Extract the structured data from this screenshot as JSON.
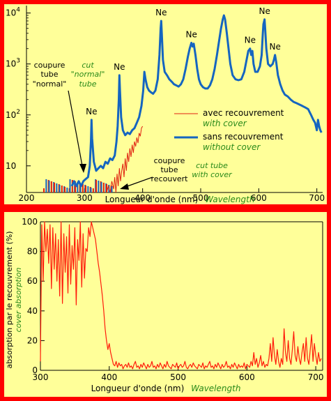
{
  "colors": {
    "frame": "#ff0000",
    "background": "#ffff99",
    "series_without_cover": "#1565c0",
    "series_with_cover": "#e02010",
    "absorption": "#ff1a0a",
    "english_text": "#2a8a1a",
    "text": "#000000"
  },
  "chart_data": [
    {
      "type": "line",
      "ylog": true,
      "xlim": [
        200,
        710
      ],
      "ylim": [
        3,
        14000
      ],
      "xticks": [
        "200",
        "300",
        "400",
        "500",
        "600",
        "700"
      ],
      "yticks": [
        {
          "base": "10",
          "exp": ""
        },
        {
          "base": "10",
          "exp": "2"
        },
        {
          "base": "10",
          "exp": "3"
        },
        {
          "base": "10",
          "exp": "4"
        }
      ],
      "xlabel": "Longueur d'onde (nm)",
      "xlabel_en": "Wavelength",
      "legend": [
        {
          "label": "avec recouvrement",
          "label_en": "with cover"
        },
        {
          "label": "sans recouvrement",
          "label_en": "without cover"
        }
      ],
      "annotations": {
        "ne": "Ne",
        "cut_normal_fr": [
          "coupure",
          "tube",
          "\"normal\""
        ],
        "cut_normal_en": [
          "cut",
          "\"normal\"",
          "tube"
        ],
        "cut_covered_fr": [
          "coupure",
          "tube",
          "recouvert"
        ],
        "cut_covered_en": [
          "cut tube",
          "with cover"
        ]
      },
      "ne_peaks": [
        {
          "x": 312,
          "y": 80
        },
        {
          "x": 360,
          "y": 600
        },
        {
          "x": 432,
          "y": 7000
        },
        {
          "x": 484,
          "y": 2600
        },
        {
          "x": 585,
          "y": 2000
        },
        {
          "x": 610,
          "y": 7500
        },
        {
          "x": 628,
          "y": 1500
        }
      ],
      "series": [
        {
          "name": "sans recouvrement",
          "points": [
            [
              278,
              4
            ],
            [
              282,
              5
            ],
            [
              286,
              4
            ],
            [
              290,
              5
            ],
            [
              294,
              4
            ],
            [
              298,
              5
            ],
            [
              302,
              5.5
            ],
            [
              306,
              6
            ],
            [
              309,
              10
            ],
            [
              311,
              30
            ],
            [
              312,
              80
            ],
            [
              313,
              35
            ],
            [
              316,
              12
            ],
            [
              320,
              8
            ],
            [
              324,
              9
            ],
            [
              328,
              10
            ],
            [
              332,
              9
            ],
            [
              336,
              12
            ],
            [
              340,
              11
            ],
            [
              344,
              14
            ],
            [
              348,
              13
            ],
            [
              352,
              16
            ],
            [
              355,
              30
            ],
            [
              357,
              60
            ],
            [
              359,
              200
            ],
            [
              360,
              600
            ],
            [
              361,
              300
            ],
            [
              363,
              90
            ],
            [
              366,
              50
            ],
            [
              370,
              40
            ],
            [
              374,
              45
            ],
            [
              378,
              42
            ],
            [
              382,
              50
            ],
            [
              386,
              55
            ],
            [
              390,
              70
            ],
            [
              394,
              90
            ],
            [
              398,
              150
            ],
            [
              401,
              300
            ],
            [
              403,
              700
            ],
            [
              405,
              500
            ],
            [
              408,
              350
            ],
            [
              411,
              300
            ],
            [
              414,
              280
            ],
            [
              418,
              260
            ],
            [
              422,
              300
            ],
            [
              426,
              500
            ],
            [
              429,
              1500
            ],
            [
              431,
              5000
            ],
            [
              432,
              7000
            ],
            [
              433,
              4000
            ],
            [
              435,
              1200
            ],
            [
              438,
              700
            ],
            [
              442,
              600
            ],
            [
              446,
              500
            ],
            [
              450,
              450
            ],
            [
              454,
              400
            ],
            [
              458,
              380
            ],
            [
              462,
              360
            ],
            [
              466,
              400
            ],
            [
              470,
              500
            ],
            [
              474,
              800
            ],
            [
              478,
              1400
            ],
            [
              481,
              2000
            ],
            [
              484,
              2600
            ],
            [
              486,
              2200
            ],
            [
              488,
              2500
            ],
            [
              491,
              1500
            ],
            [
              494,
              800
            ],
            [
              497,
              500
            ],
            [
              500,
              400
            ],
            [
              504,
              350
            ],
            [
              508,
              330
            ],
            [
              512,
              330
            ],
            [
              516,
              380
            ],
            [
              520,
              500
            ],
            [
              524,
              800
            ],
            [
              528,
              1500
            ],
            [
              532,
              3000
            ],
            [
              535,
              5000
            ],
            [
              538,
              7500
            ],
            [
              540,
              9000
            ],
            [
              542,
              7500
            ],
            [
              545,
              4000
            ],
            [
              548,
              2000
            ],
            [
              551,
              1000
            ],
            [
              555,
              600
            ],
            [
              560,
              500
            ],
            [
              565,
              480
            ],
            [
              570,
              500
            ],
            [
              575,
              700
            ],
            [
              579,
              1200
            ],
            [
              582,
              1800
            ],
            [
              585,
              2000
            ],
            [
              587,
              1500
            ],
            [
              589,
              1800
            ],
            [
              591,
              1000
            ],
            [
              594,
              700
            ],
            [
              598,
              700
            ],
            [
              602,
              900
            ],
            [
              605,
              1500
            ],
            [
              607,
              4000
            ],
            [
              608,
              6000
            ],
            [
              610,
              7500
            ],
            [
              611,
              5000
            ],
            [
              613,
              2000
            ],
            [
              616,
              1000
            ],
            [
              620,
              900
            ],
            [
              624,
              1000
            ],
            [
              626,
              1200
            ],
            [
              628,
              1500
            ],
            [
              630,
              1100
            ],
            [
              633,
              600
            ],
            [
              637,
              400
            ],
            [
              641,
              300
            ],
            [
              645,
              250
            ],
            [
              650,
              230
            ],
            [
              655,
              200
            ],
            [
              660,
              180
            ],
            [
              665,
              170
            ],
            [
              670,
              160
            ],
            [
              675,
              150
            ],
            [
              680,
              140
            ],
            [
              685,
              130
            ],
            [
              690,
              100
            ],
            [
              694,
              80
            ],
            [
              697,
              70
            ],
            [
              700,
              50
            ],
            [
              702,
              80
            ],
            [
              704,
              60
            ],
            [
              706,
              50
            ],
            [
              708,
              45
            ]
          ]
        },
        {
          "name": "avec recouvrement",
          "points": [
            [
              338,
              3
            ],
            [
              341,
              4
            ],
            [
              344,
              3
            ],
            [
              347,
              5
            ],
            [
              350,
              3.5
            ],
            [
              352,
              6
            ],
            [
              354,
              3
            ],
            [
              356,
              7
            ],
            [
              358,
              4
            ],
            [
              360,
              9
            ],
            [
              362,
              5
            ],
            [
              364,
              8
            ],
            [
              366,
              11
            ],
            [
              368,
              6
            ],
            [
              370,
              14
            ],
            [
              372,
              8
            ],
            [
              374,
              18
            ],
            [
              376,
              12
            ],
            [
              378,
              22
            ],
            [
              380,
              15
            ],
            [
              382,
              26
            ],
            [
              384,
              18
            ],
            [
              386,
              30
            ],
            [
              388,
              24
            ],
            [
              390,
              36
            ],
            [
              392,
              28
            ],
            [
              394,
              44
            ],
            [
              396,
              38
            ],
            [
              398,
              55
            ],
            [
              400,
              60
            ]
          ]
        }
      ]
    },
    {
      "type": "line",
      "xlim": [
        300,
        710
      ],
      "ylim": [
        0,
        100
      ],
      "xticks": [
        "300",
        "400",
        "500",
        "600",
        "700"
      ],
      "yticks": [
        "0",
        "20",
        "40",
        "60",
        "80",
        "100"
      ],
      "xlabel": "Longueur d'onde (nm)",
      "xlabel_en": "Wavelength",
      "ylabel": "absorption par le recouvrement (%)",
      "ylabel_en": "cover absorption",
      "series": [
        {
          "name": "absorption",
          "x_start": 300,
          "x_step": 2,
          "values": [
            6,
            98,
            60,
            100,
            80,
            95,
            72,
            98,
            55,
            96,
            68,
            92,
            60,
            88,
            50,
            100,
            45,
            92,
            66,
            90,
            52,
            98,
            58,
            84,
            68,
            96,
            44,
            88,
            74,
            100,
            56,
            92,
            62,
            82,
            80,
            96,
            90,
            100,
            96,
            92,
            88,
            80,
            72,
            66,
            58,
            50,
            40,
            28,
            20,
            14,
            18,
            12,
            8,
            4,
            3,
            6,
            2,
            5,
            3,
            4,
            1,
            3,
            4,
            2,
            5,
            2,
            3,
            1,
            4,
            6,
            2,
            3,
            1,
            4,
            2,
            5,
            3,
            1,
            4,
            2,
            3,
            6,
            2,
            3,
            1,
            4,
            2,
            5,
            3,
            1,
            4,
            2,
            6,
            3,
            2,
            1,
            4,
            3,
            2,
            5,
            1,
            3,
            4,
            2,
            3,
            6,
            2,
            1,
            3,
            4,
            2,
            5,
            3,
            2,
            1,
            4,
            3,
            2,
            5,
            1,
            3,
            2,
            4,
            6,
            2,
            3,
            1,
            4,
            2,
            5,
            3,
            1,
            4,
            2,
            3,
            6,
            2,
            3,
            1,
            4,
            2,
            5,
            3,
            1,
            4,
            2,
            3,
            2,
            5,
            1,
            4,
            3,
            2,
            6,
            3,
            12,
            4,
            8,
            2,
            5,
            10,
            3,
            6,
            2,
            4,
            3,
            8,
            18,
            6,
            22,
            10,
            4,
            14,
            6,
            2,
            8,
            4,
            28,
            12,
            6,
            20,
            8,
            4,
            14,
            26,
            10,
            6,
            16,
            8,
            4,
            12,
            18,
            6,
            22,
            8,
            4,
            14,
            24,
            6,
            18,
            10,
            4,
            12,
            6,
            8
          ]
        }
      ]
    }
  ]
}
